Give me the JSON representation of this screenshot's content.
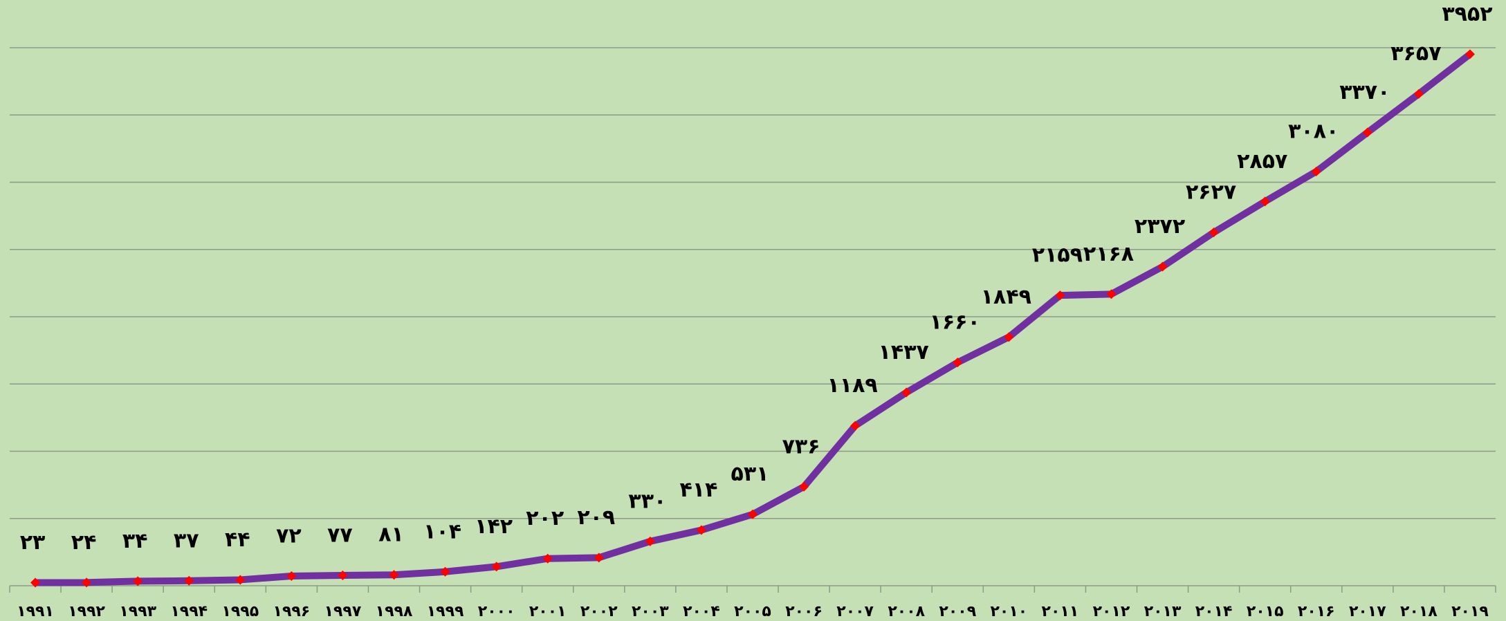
{
  "chart_data": {
    "type": "line",
    "categories": [
      "۱۹۹۱",
      "۱۹۹۲",
      "۱۹۹۳",
      "۱۹۹۴",
      "۱۹۹۵",
      "۱۹۹۶",
      "۱۹۹۷",
      "۱۹۹۸",
      "۱۹۹۹",
      "۲۰۰۰",
      "۲۰۰۱",
      "۲۰۰۲",
      "۲۰۰۳",
      "۲۰۰۴",
      "۲۰۰۵",
      "۲۰۰۶",
      "۲۰۰۷",
      "۲۰۰۸",
      "۲۰۰۹",
      "۲۰۱۰",
      "۲۰۱۱",
      "۲۰۱۲",
      "۲۰۱۳",
      "۲۰۱۴",
      "۲۰۱۵",
      "۲۰۱۶",
      "۲۰۱۷",
      "۲۰۱۸",
      "۲۰۱۹"
    ],
    "values": [
      23,
      24,
      34,
      37,
      44,
      72,
      77,
      81,
      104,
      142,
      202,
      209,
      330,
      414,
      531,
      736,
      1189,
      1437,
      1660,
      1849,
      2159,
      2168,
      2372,
      2627,
      2857,
      3080,
      3370,
      3657,
      3952
    ],
    "value_labels": [
      "۲۳",
      "۲۴",
      "۳۴",
      "۳۷",
      "۴۴",
      "۷۲",
      "۷۷",
      "۸۱",
      "۱۰۴",
      "۱۴۲",
      "۲۰۲",
      "۲۰۹",
      "۳۳۰",
      "۴۱۴",
      "۵۳۱",
      "۷۳۶",
      "۱۱۸۹",
      "۱۴۳۷",
      "۱۶۶۰",
      "۱۸۴۹",
      "۲۱۵۹",
      "۲۱۶۸",
      "۲۳۷۲",
      "۲۶۲۷",
      "۲۸۵۷",
      "۳۰۸۰",
      "۳۳۷۰",
      "۳۶۵۷",
      "۳۹۵۲"
    ],
    "color": "#7030a0",
    "marker_color": "#ff0000",
    "ylim": [
      0,
      4000
    ],
    "yticks": [
      0,
      500,
      1000,
      1500,
      2000,
      2500,
      3000,
      3500,
      4000
    ],
    "grid": true
  }
}
